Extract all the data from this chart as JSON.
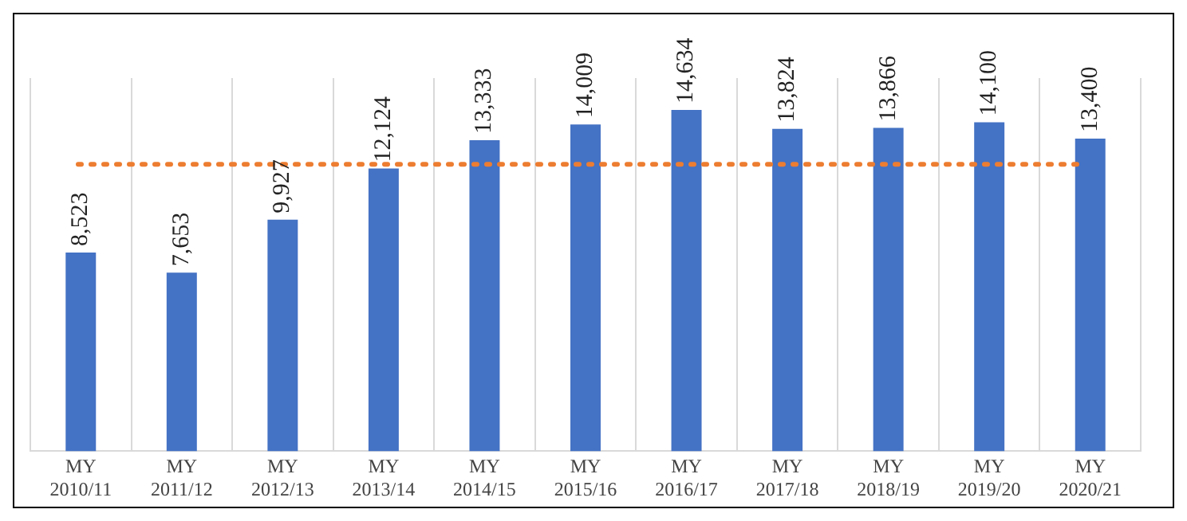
{
  "chart_data": {
    "type": "bar",
    "categories": [
      "MY 2010/11",
      "MY 2011/12",
      "MY 2012/13",
      "MY 2013/14",
      "MY 2014/15",
      "MY 2015/16",
      "MY 2016/17",
      "MY 2017/18",
      "MY 2018/19",
      "MY 2019/20",
      "MY 2020/21"
    ],
    "values": [
      8523,
      7653,
      9927,
      12124,
      13333,
      14009,
      14634,
      13824,
      13866,
      14100,
      13400
    ],
    "value_labels": [
      "8,523",
      "7,653",
      "9,927",
      "12,124",
      "13,333",
      "14,009",
      "14,634",
      "13,824",
      "13,866",
      "14,100",
      "13,400"
    ],
    "color": "#4472c4",
    "tick_labels": "x",
    "grid": "x",
    "ref_lines": [
      {
        "axis": "y",
        "value": 12300,
        "color": "#ed7d31",
        "line_style": "dotted"
      }
    ]
  }
}
